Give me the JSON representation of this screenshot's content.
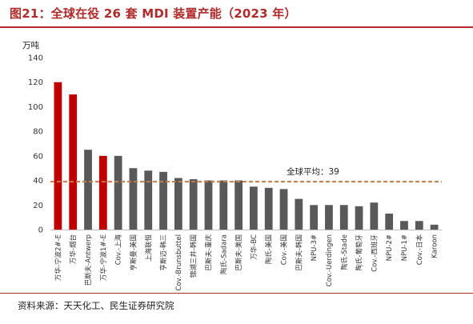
{
  "header": {
    "title": "图21：全球在役 26 套 MDI 装置产能（2023 年）"
  },
  "footer": {
    "source": "资料来源：天天化工、民生证券研究院"
  },
  "colors": {
    "accent": "#b22a2a",
    "highlight_bar": "#c00000",
    "normal_bar": "#595959",
    "average_line": "#c8784a"
  },
  "chart_data": {
    "type": "bar",
    "unit": "万吨",
    "categories": [
      "万华-宁波2#-E",
      "万华-烟台",
      "巴斯夫-Antwerp",
      "万华-宁波1#-E",
      "Cov.-上海",
      "亨斯曼-美国",
      "上海联恒",
      "亨斯迈-韩三",
      "Cov.-Brunsbuttel",
      "锦湖三井-韩国",
      "巴斯夫-重庆",
      "陶氏-Sadara",
      "巴斯夫-美国",
      "万华-BC",
      "陶氏-美国",
      "Cov.-美国",
      "巴斯夫-韩国",
      "NPU-3#",
      "Cov.-Uerdingen",
      "陶氏-Stade",
      "陶氏-葡萄牙",
      "Cov.-西班牙",
      "NPU-2#",
      "NPU-1#",
      "Cov.-日本",
      "Karoon"
    ],
    "values": [
      120,
      110,
      65,
      60,
      60,
      50,
      48,
      47,
      42,
      41,
      40,
      40,
      40,
      35,
      34,
      33,
      25,
      20,
      20,
      20,
      19,
      22,
      13,
      7,
      7,
      4
    ],
    "highlighted": [
      true,
      true,
      false,
      true,
      false,
      false,
      false,
      false,
      false,
      false,
      false,
      false,
      false,
      false,
      false,
      false,
      false,
      false,
      false,
      false,
      false,
      false,
      false,
      false,
      false,
      false
    ],
    "average": 39,
    "average_label": "全球平均：39",
    "ylim": [
      0,
      140
    ],
    "yticks": [
      0,
      20,
      40,
      60,
      80,
      100,
      120,
      140
    ],
    "grid": false,
    "legend": "none"
  }
}
